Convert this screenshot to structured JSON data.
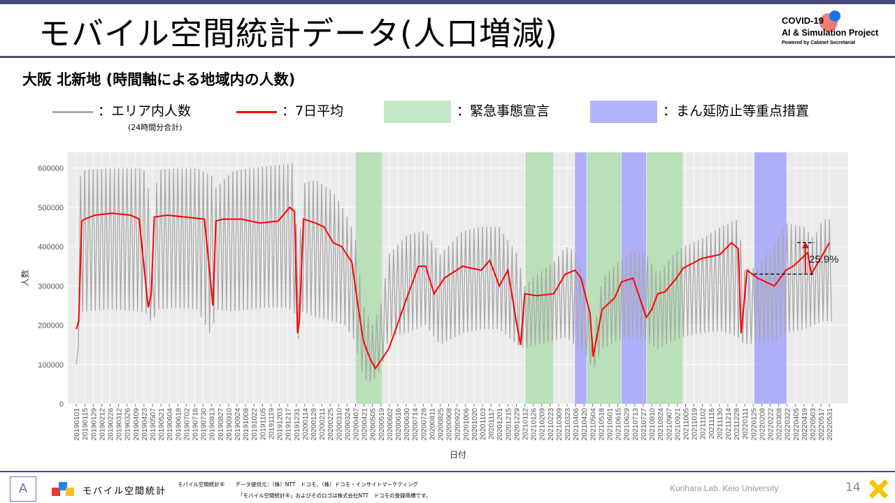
{
  "header": {
    "title": "モバイル空間統計データ(人口増減)",
    "logo_line1": "COVID-19",
    "logo_line2": "AI & Simulation Project",
    "logo_line3": "Powered by Cabinet Secretariat"
  },
  "subtitle": "大阪 北新地 (時間軸による地域内の人数)",
  "legend": {
    "gray_label": "：エリア内人数",
    "gray_note": "(24時間分合計)",
    "red_label": "：7日平均",
    "green_label": "：緊急事態宣言",
    "blue_label": "：まん延防止等重点措置"
  },
  "colors": {
    "gray_line": "#a8a8a8",
    "red_line": "#ff0000",
    "green_band": "#a8dca8",
    "blue_band": "#9999ff",
    "plot_bg": "#ebebeb",
    "accent": "#4b4a7d"
  },
  "chart_data": {
    "type": "line",
    "xlabel": "日付",
    "ylabel": "人数",
    "ylim": [
      0,
      640000
    ],
    "y_ticks": [
      "0",
      "100000",
      "200000",
      "300000",
      "400000",
      "500000",
      "600000"
    ],
    "x_tick_labels": [
      "20190101",
      "20190115",
      "20190129",
      "20190212",
      "20190226",
      "20190312",
      "20190326",
      "20190409",
      "20190423",
      "20190507",
      "20190521",
      "20190604",
      "20190618",
      "20190702",
      "20190716",
      "20190730",
      "20190813",
      "20190827",
      "20190910",
      "20190924",
      "20191008",
      "20191022",
      "20191105",
      "20191119",
      "20191203",
      "20191217",
      "20191231",
      "20200114",
      "20200128",
      "20200211",
      "20200225",
      "20200310",
      "20200324",
      "20200407",
      "20200421",
      "20200505",
      "20200519",
      "20200602",
      "20200616",
      "20200630",
      "20200714",
      "20200728",
      "20200811",
      "20200825",
      "20200908",
      "20200922",
      "20201006",
      "20201020",
      "20201103",
      "20201117",
      "20201201",
      "20201215",
      "20201229",
      "20210112",
      "20210126",
      "20210209",
      "20210223",
      "20210309",
      "20210323",
      "20210406",
      "20210420",
      "20210504",
      "20210518",
      "20210601",
      "20210615",
      "20210629",
      "20210713",
      "20210727",
      "20210810",
      "20210824",
      "20210907",
      "20210921",
      "20211005",
      "20211019",
      "20211102",
      "20211116",
      "20211130",
      "20211214",
      "20211228",
      "20220111",
      "20220125",
      "20220208",
      "20220222",
      "20220308",
      "20220322",
      "20220405",
      "20220419",
      "20220503",
      "20220517",
      "20220531"
    ],
    "emergency_periods": [
      [
        "20200407",
        "20200521"
      ],
      [
        "20210113",
        "20210228"
      ],
      [
        "20210425",
        "20210620"
      ],
      [
        "20210802",
        "20210930"
      ]
    ],
    "semi_emergency_periods": [
      [
        "20210405",
        "20210424"
      ],
      [
        "20210621",
        "20210801"
      ],
      [
        "20220127",
        "20220321"
      ]
    ],
    "series": [
      {
        "name": "エリア内人数",
        "x": [
          "20190101",
          "20190108",
          "20190115",
          "20190301",
          "20190415",
          "20190429",
          "20190506",
          "20190515",
          "20190615",
          "20190720",
          "20190813",
          "20190820",
          "20190915",
          "20191015",
          "20191115",
          "20191215",
          "20191228",
          "20200103",
          "20200110",
          "20200201",
          "20200301",
          "20200320",
          "20200406",
          "20200420",
          "20200505",
          "20200520",
          "20200601",
          "20200701",
          "20200801",
          "20200825",
          "20201001",
          "20201101",
          "20201201",
          "20201231",
          "20210112",
          "20210201",
          "20210301",
          "20210320",
          "20210405",
          "20210420",
          "20210505",
          "20210520",
          "20210615",
          "20210710",
          "20210801",
          "20210820",
          "20210915",
          "20211001",
          "20211101",
          "20211201",
          "20211231",
          "20220110",
          "20220201",
          "20220301",
          "20220320",
          "20220420",
          "20220505",
          "20220520",
          "20220605"
        ],
        "high": [
          100000,
          580000,
          595000,
          600000,
          600000,
          590000,
          300000,
          595000,
          600000,
          600000,
          580000,
          550000,
          590000,
          600000,
          605000,
          610000,
          615000,
          300000,
          560000,
          570000,
          540000,
          490000,
          430000,
          250000,
          200000,
          260000,
          380000,
          430000,
          440000,
          380000,
          440000,
          450000,
          450000,
          380000,
          300000,
          330000,
          360000,
          400000,
          390000,
          320000,
          160000,
          320000,
          360000,
          390000,
          380000,
          330000,
          380000,
          400000,
          420000,
          450000,
          470000,
          340000,
          350000,
          410000,
          460000,
          450000,
          420000,
          470000,
          470000
        ],
        "low": [
          65000,
          230000,
          235000,
          240000,
          235000,
          230000,
          200000,
          240000,
          245000,
          240000,
          170000,
          240000,
          235000,
          240000,
          245000,
          245000,
          230000,
          160000,
          235000,
          220000,
          210000,
          200000,
          160000,
          60000,
          55000,
          90000,
          170000,
          180000,
          200000,
          150000,
          180000,
          190000,
          190000,
          150000,
          140000,
          150000,
          160000,
          170000,
          150000,
          130000,
          85000,
          140000,
          160000,
          170000,
          160000,
          140000,
          160000,
          170000,
          180000,
          185000,
          170000,
          150000,
          155000,
          160000,
          180000,
          190000,
          200000,
          210000,
          210000
        ]
      },
      {
        "name": "7日平均",
        "x": [
          "20190101",
          "20190105",
          "20190110",
          "20190115",
          "20190201",
          "20190301",
          "20190401",
          "20190415",
          "20190430",
          "20190505",
          "20190510",
          "20190601",
          "20190701",
          "20190801",
          "20190810",
          "20190815",
          "20190820",
          "20190901",
          "20191001",
          "20191101",
          "20191201",
          "20191220",
          "20191228",
          "20200102",
          "20200105",
          "20200112",
          "20200201",
          "20200215",
          "20200301",
          "20200315",
          "20200401",
          "20200410",
          "20200420",
          "20200501",
          "20200510",
          "20200601",
          "20200701",
          "20200720",
          "20200801",
          "20200815",
          "20200901",
          "20201001",
          "20201101",
          "20201115",
          "20201201",
          "20201215",
          "20201230",
          "20210105",
          "20210112",
          "20210201",
          "20210301",
          "20210320",
          "20210405",
          "20210415",
          "20210430",
          "20210505",
          "20210520",
          "20210610",
          "20210621",
          "20210710",
          "20210801",
          "20210810",
          "20210820",
          "20210901",
          "20210920",
          "20211001",
          "20211101",
          "20211201",
          "20211220",
          "20211231",
          "20220105",
          "20220115",
          "20220201",
          "20220301",
          "20220320",
          "20220401",
          "20220415",
          "20220425",
          "20220501",
          "20220520",
          "20220531"
        ],
        "values": [
          190000,
          210000,
          465000,
          470000,
          480000,
          485000,
          480000,
          470000,
          245000,
          280000,
          475000,
          480000,
          475000,
          470000,
          330000,
          250000,
          465000,
          470000,
          470000,
          460000,
          465000,
          500000,
          490000,
          180000,
          210000,
          470000,
          460000,
          450000,
          410000,
          400000,
          360000,
          260000,
          160000,
          115000,
          90000,
          140000,
          270000,
          350000,
          350000,
          280000,
          320000,
          350000,
          340000,
          365000,
          300000,
          340000,
          200000,
          150000,
          280000,
          275000,
          280000,
          330000,
          340000,
          320000,
          230000,
          120000,
          240000,
          270000,
          310000,
          320000,
          220000,
          240000,
          280000,
          285000,
          320000,
          345000,
          370000,
          380000,
          410000,
          395000,
          180000,
          340000,
          320000,
          300000,
          340000,
          350000,
          370000,
          385000,
          330000,
          380000,
          410000
        ]
      }
    ],
    "annotation": "25.9%"
  },
  "footer": {
    "app_name": "モバイル空間統計",
    "small_line1": "モバイル空間統計®　　データ提供元：（株）NTT　ドコモ、（株）ドコモ・インサイトマーケティング",
    "small_line2": "「モバイル空間統計®」およびそのロゴは株式会社NTT　ドコモの登録商標です。",
    "credit": "Kurihara Lab. Keio University",
    "page_number": "14"
  }
}
